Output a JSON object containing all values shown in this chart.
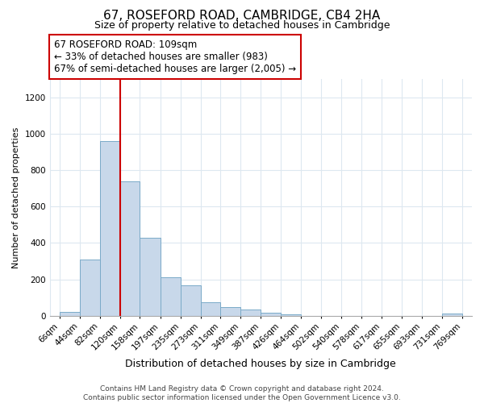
{
  "title": "67, ROSEFORD ROAD, CAMBRIDGE, CB4 2HA",
  "subtitle": "Size of property relative to detached houses in Cambridge",
  "xlabel": "Distribution of detached houses by size in Cambridge",
  "ylabel": "Number of detached properties",
  "bar_values": [
    20,
    310,
    960,
    740,
    430,
    210,
    165,
    72,
    48,
    35,
    18,
    8,
    0,
    0,
    0,
    0,
    0,
    0,
    0,
    10
  ],
  "bar_labels": [
    "6sqm",
    "44sqm",
    "82sqm",
    "120sqm",
    "158sqm",
    "197sqm",
    "235sqm",
    "273sqm",
    "311sqm",
    "349sqm",
    "387sqm",
    "426sqm",
    "464sqm",
    "502sqm",
    "540sqm",
    "578sqm",
    "617sqm",
    "655sqm",
    "693sqm",
    "731sqm",
    "769sqm"
  ],
  "bar_color": "#c8d8ea",
  "bar_edge_color": "#7aaac8",
  "vline_color": "#cc0000",
  "vline_x_index": 2.5,
  "ylim": [
    0,
    1300
  ],
  "yticks": [
    0,
    200,
    400,
    600,
    800,
    1000,
    1200
  ],
  "annotation_line1": "67 ROSEFORD ROAD: 109sqm",
  "annotation_line2": "← 33% of detached houses are smaller (983)",
  "annotation_line3": "67% of semi-detached houses are larger (2,005) →",
  "annotation_box_color": "#cc0000",
  "footer_line1": "Contains HM Land Registry data © Crown copyright and database right 2024.",
  "footer_line2": "Contains public sector information licensed under the Open Government Licence v3.0.",
  "background_color": "#ffffff",
  "grid_color": "#dde8f0",
  "title_fontsize": 11,
  "subtitle_fontsize": 9,
  "xlabel_fontsize": 9,
  "ylabel_fontsize": 8,
  "tick_fontsize": 7.5,
  "footer_fontsize": 6.5,
  "annotation_fontsize": 8.5
}
